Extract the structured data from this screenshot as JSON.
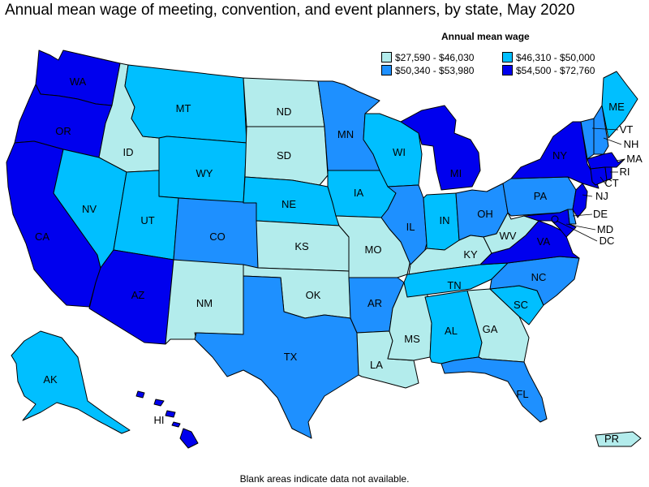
{
  "title": "Annual mean wage of meeting, convention, and event planners, by state, May 2020",
  "legend": {
    "title": "Annual mean wage",
    "items": [
      {
        "label": "$27,590 - $46,030",
        "color": "#b3ecec"
      },
      {
        "label": "$46,310 - $50,000",
        "color": "#00bfff"
      },
      {
        "label": "$50,340 - $53,980",
        "color": "#1e90ff"
      },
      {
        "label": "$54,500 - $72,760",
        "color": "#0000ee"
      }
    ]
  },
  "footnote": "Blank areas indicate data not available.",
  "states": {
    "WA": {
      "label": "WA",
      "tier": 3
    },
    "OR": {
      "label": "OR",
      "tier": 3
    },
    "CA": {
      "label": "CA",
      "tier": 3
    },
    "ID": {
      "label": "ID",
      "tier": 0
    },
    "NV": {
      "label": "NV",
      "tier": 1
    },
    "MT": {
      "label": "MT",
      "tier": 1
    },
    "WY": {
      "label": "WY",
      "tier": 1
    },
    "UT": {
      "label": "UT",
      "tier": 1
    },
    "AZ": {
      "label": "AZ",
      "tier": 3
    },
    "CO": {
      "label": "CO",
      "tier": 2
    },
    "NM": {
      "label": "NM",
      "tier": 0
    },
    "ND": {
      "label": "ND",
      "tier": 0
    },
    "SD": {
      "label": "SD",
      "tier": 0
    },
    "NE": {
      "label": "NE",
      "tier": 1
    },
    "KS": {
      "label": "KS",
      "tier": 0
    },
    "OK": {
      "label": "OK",
      "tier": 0
    },
    "TX": {
      "label": "TX",
      "tier": 2
    },
    "MN": {
      "label": "MN",
      "tier": 2
    },
    "IA": {
      "label": "IA",
      "tier": 1
    },
    "MO": {
      "label": "MO",
      "tier": 0
    },
    "AR": {
      "label": "AR",
      "tier": 2
    },
    "LA": {
      "label": "LA",
      "tier": 0
    },
    "WI": {
      "label": "WI",
      "tier": 1
    },
    "IL": {
      "label": "IL",
      "tier": 2
    },
    "MS": {
      "label": "MS",
      "tier": 0
    },
    "MI": {
      "label": "MI",
      "tier": 3
    },
    "IN": {
      "label": "IN",
      "tier": 1
    },
    "OH": {
      "label": "OH",
      "tier": 2
    },
    "KY": {
      "label": "KY",
      "tier": 0
    },
    "TN": {
      "label": "TN",
      "tier": 1
    },
    "AL": {
      "label": "AL",
      "tier": 1
    },
    "GA": {
      "label": "GA",
      "tier": 0
    },
    "FL": {
      "label": "FL",
      "tier": 2
    },
    "SC": {
      "label": "SC",
      "tier": 1
    },
    "NC": {
      "label": "NC",
      "tier": 2
    },
    "VA": {
      "label": "VA",
      "tier": 3
    },
    "WV": {
      "label": "WV",
      "tier": 0
    },
    "PA": {
      "label": "PA",
      "tier": 2
    },
    "NY": {
      "label": "NY",
      "tier": 3
    },
    "ME": {
      "label": "ME",
      "tier": 1
    },
    "VT": {
      "label": "VT",
      "tier": 2
    },
    "NH": {
      "label": "NH",
      "tier": 2
    },
    "MA": {
      "label": "MA",
      "tier": 3
    },
    "RI": {
      "label": "RI",
      "tier": 3
    },
    "CT": {
      "label": "CT",
      "tier": 3
    },
    "NJ": {
      "label": "NJ",
      "tier": 3
    },
    "DE": {
      "label": "DE",
      "tier": 2
    },
    "MD": {
      "label": "MD",
      "tier": 3
    },
    "DC": {
      "label": "DC",
      "tier": 3
    },
    "AK": {
      "label": "AK",
      "tier": 1
    },
    "HI": {
      "label": "HI",
      "tier": 3
    },
    "PR": {
      "label": "PR",
      "tier": 0
    }
  }
}
